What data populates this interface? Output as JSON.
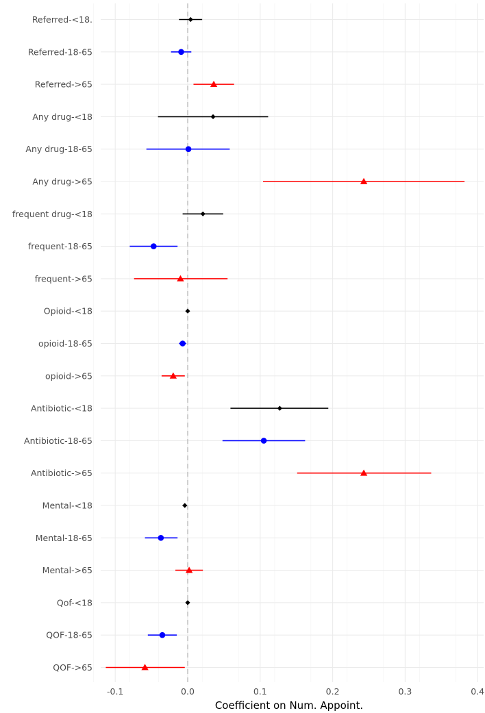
{
  "chart_data": {
    "type": "forest",
    "title": "",
    "xlabel": "Coefficient on Num. Appoint.",
    "ylabel": "",
    "xlim": [
      -0.135,
      0.41
    ],
    "xticks": [
      -0.1,
      0.0,
      0.1,
      0.2,
      0.3,
      0.4
    ],
    "xtick_labels": [
      "-0.1",
      "0.0",
      "0.1",
      "0.2",
      "0.3",
      "0.4"
    ],
    "reference_line": 0,
    "grid": true,
    "legend": "none",
    "group_styles": {
      "<18": {
        "color": "#000000",
        "marker": "diamond"
      },
      "18-65": {
        "color": "#0000ff",
        "marker": "circle"
      },
      ">65": {
        "color": "#ff0000",
        "marker": "triangle"
      }
    },
    "rows": [
      {
        "label": "Referred-<18.",
        "group": "<18",
        "estimate": 0.004,
        "low": -0.012,
        "high": 0.02
      },
      {
        "label": "Referred-18-65",
        "group": "18-65",
        "estimate": -0.009,
        "low": -0.023,
        "high": 0.005
      },
      {
        "label": "Referred->65",
        "group": ">65",
        "estimate": 0.036,
        "low": 0.008,
        "high": 0.064
      },
      {
        "label": "Any drug-<18",
        "group": "<18",
        "estimate": 0.035,
        "low": -0.041,
        "high": 0.111
      },
      {
        "label": "Any drug-18-65",
        "group": "18-65",
        "estimate": 0.001,
        "low": -0.057,
        "high": 0.058
      },
      {
        "label": "Any drug->65",
        "group": ">65",
        "estimate": 0.243,
        "low": 0.104,
        "high": 0.382
      },
      {
        "label": "frequent drug-<18",
        "group": "<18",
        "estimate": 0.021,
        "low": -0.007,
        "high": 0.049
      },
      {
        "label": "frequent-18-65",
        "group": "18-65",
        "estimate": -0.047,
        "low": -0.08,
        "high": -0.014
      },
      {
        "label": "frequent->65",
        "group": ">65",
        "estimate": -0.01,
        "low": -0.074,
        "high": 0.055
      },
      {
        "label": "Opioid-<18",
        "group": "<18",
        "estimate": 0.0,
        "low": -0.002,
        "high": 0.002
      },
      {
        "label": "opioid-18-65",
        "group": "18-65",
        "estimate": -0.007,
        "low": -0.012,
        "high": -0.002
      },
      {
        "label": "opioid->65",
        "group": ">65",
        "estimate": -0.02,
        "low": -0.036,
        "high": -0.004
      },
      {
        "label": "Antibiotic-<18",
        "group": "<18",
        "estimate": 0.127,
        "low": 0.059,
        "high": 0.194
      },
      {
        "label": "Antibiotic-18-65",
        "group": "18-65",
        "estimate": 0.105,
        "low": 0.048,
        "high": 0.162
      },
      {
        "label": "Antibiotic->65",
        "group": ">65",
        "estimate": 0.243,
        "low": 0.151,
        "high": 0.336
      },
      {
        "label": "Mental-<18",
        "group": "<18",
        "estimate": -0.004,
        "low": -0.007,
        "high": -0.001
      },
      {
        "label": "Mental-18-65",
        "group": "18-65",
        "estimate": -0.037,
        "low": -0.059,
        "high": -0.014
      },
      {
        "label": "Mental->65",
        "group": ">65",
        "estimate": 0.002,
        "low": -0.017,
        "high": 0.021
      },
      {
        "label": "Qof-<18",
        "group": "<18",
        "estimate": 0.0,
        "low": -0.001,
        "high": 0.001
      },
      {
        "label": "QOF-18-65",
        "group": "18-65",
        "estimate": -0.035,
        "low": -0.055,
        "high": -0.015
      },
      {
        "label": "QOF->65",
        "group": ">65",
        "estimate": -0.059,
        "low": -0.113,
        "high": -0.004
      }
    ]
  }
}
